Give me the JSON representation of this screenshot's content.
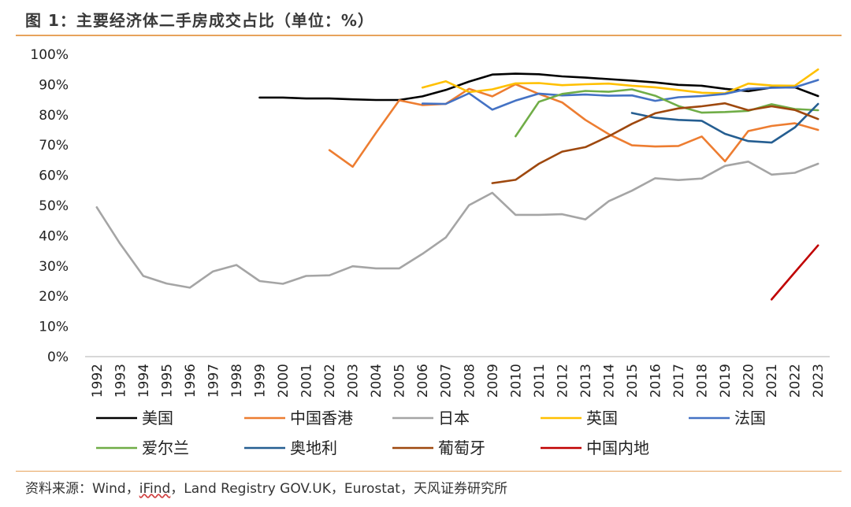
{
  "header": {
    "title": "图 1：主要经济体二手房成交占比（单位：%）"
  },
  "footer": {
    "source_prefix": "资料来源：Wind，",
    "source_ifind": "iFind",
    "source_suffix": "，Land Registry GOV.UK，Eurostat，天风证券研究所"
  },
  "colors": {
    "accent_rule": "#e7a35c"
  },
  "chart_data": {
    "type": "line",
    "title": "主要经济体二手房成交占比（单位：%）",
    "xlabel": "",
    "ylabel": "",
    "ylim": [
      0,
      100
    ],
    "y_ticks": [
      0,
      10,
      20,
      30,
      40,
      50,
      60,
      70,
      80,
      90,
      100
    ],
    "y_tick_labels": [
      "0%",
      "10%",
      "20%",
      "30%",
      "40%",
      "50%",
      "60%",
      "70%",
      "80%",
      "90%",
      "100%"
    ],
    "x": [
      1992,
      1993,
      1994,
      1995,
      1996,
      1997,
      1998,
      1999,
      2000,
      2001,
      2002,
      2003,
      2004,
      2005,
      2006,
      2007,
      2008,
      2009,
      2010,
      2011,
      2012,
      2013,
      2014,
      2015,
      2016,
      2017,
      2018,
      2019,
      2020,
      2021,
      2022,
      2023
    ],
    "x_labels": [
      "1992",
      "1993",
      "1994",
      "1995",
      "1996",
      "1997",
      "1998",
      "1999",
      "2000",
      "2001",
      "2002",
      "2003",
      "2004",
      "2005",
      "2006",
      "2007",
      "2008",
      "2009",
      "2010",
      "2011",
      "2012",
      "2013",
      "2014",
      "2015",
      "2016",
      "2017",
      "2018",
      "2019",
      "2020",
      "2021",
      "2022",
      "2023"
    ],
    "series": [
      {
        "name": "美国",
        "color": "#000000",
        "values": [
          null,
          null,
          null,
          null,
          null,
          null,
          null,
          85.7,
          85.7,
          85.4,
          85.4,
          85.1,
          84.9,
          84.9,
          86.1,
          88.2,
          91.0,
          93.3,
          93.6,
          93.4,
          92.7,
          92.3,
          91.8,
          91.3,
          90.7,
          89.9,
          89.6,
          88.6,
          87.8,
          89.0,
          89.1,
          86.2
        ]
      },
      {
        "name": "中国香港",
        "color": "#ed7d31",
        "values": [
          null,
          null,
          null,
          null,
          null,
          null,
          null,
          null,
          null,
          null,
          68.3,
          62.8,
          74.0,
          84.8,
          83.2,
          83.6,
          88.6,
          86.1,
          90.1,
          86.9,
          84.1,
          78.3,
          73.6,
          69.9,
          69.5,
          69.7,
          72.8,
          64.6,
          74.6,
          76.3,
          77.2,
          75.0
        ]
      },
      {
        "name": "日本",
        "color": "#a5a5a5",
        "values": [
          49.4,
          37.4,
          26.7,
          24.2,
          22.8,
          28.2,
          30.3,
          25.0,
          24.1,
          26.7,
          26.9,
          29.9,
          29.2,
          29.2,
          34.0,
          39.4,
          50.1,
          54.2,
          46.9,
          46.9,
          47.1,
          45.4,
          51.4,
          54.9,
          59.0,
          58.4,
          58.9,
          63.1,
          64.5,
          60.2,
          60.8,
          63.8
        ]
      },
      {
        "name": "英国",
        "color": "#ffc000",
        "values": [
          null,
          null,
          null,
          null,
          null,
          null,
          null,
          null,
          null,
          null,
          null,
          null,
          null,
          null,
          89.0,
          91.1,
          87.5,
          88.4,
          90.4,
          90.5,
          89.8,
          90.1,
          90.3,
          89.6,
          89.1,
          88.2,
          87.3,
          87.1,
          90.3,
          89.7,
          89.6,
          95.0
        ]
      },
      {
        "name": "法国",
        "color": "#4472c4",
        "values": [
          null,
          null,
          null,
          null,
          null,
          null,
          null,
          null,
          null,
          null,
          null,
          null,
          null,
          null,
          83.7,
          83.6,
          87.1,
          81.7,
          84.7,
          87.0,
          86.4,
          86.7,
          86.3,
          86.4,
          84.6,
          85.8,
          86.2,
          86.9,
          88.6,
          88.9,
          89.1,
          91.5
        ]
      },
      {
        "name": "爱尔兰",
        "color": "#70ad47",
        "values": [
          null,
          null,
          null,
          null,
          null,
          null,
          null,
          null,
          null,
          null,
          null,
          null,
          null,
          null,
          null,
          null,
          null,
          null,
          72.9,
          84.3,
          86.9,
          87.9,
          87.6,
          88.4,
          86.3,
          82.9,
          80.7,
          80.9,
          81.3,
          83.5,
          81.9,
          81.5
        ]
      },
      {
        "name": "奥地利",
        "color": "#255e91",
        "values": [
          null,
          null,
          null,
          null,
          null,
          null,
          null,
          null,
          null,
          null,
          null,
          null,
          null,
          null,
          null,
          null,
          null,
          null,
          null,
          null,
          null,
          null,
          null,
          80.6,
          79.0,
          78.3,
          78.0,
          73.7,
          71.3,
          70.8,
          75.8,
          83.6
        ]
      },
      {
        "name": "葡萄牙",
        "color": "#9e480e",
        "values": [
          null,
          null,
          null,
          null,
          null,
          null,
          null,
          null,
          null,
          null,
          null,
          null,
          null,
          null,
          null,
          null,
          null,
          57.4,
          58.5,
          63.8,
          67.8,
          69.3,
          72.9,
          77.0,
          80.5,
          82.1,
          82.8,
          83.8,
          81.5,
          82.8,
          81.6,
          78.6
        ]
      },
      {
        "name": "中国内地",
        "color": "#c00000",
        "values": [
          null,
          null,
          null,
          null,
          null,
          null,
          null,
          null,
          null,
          null,
          null,
          null,
          null,
          null,
          null,
          null,
          null,
          null,
          null,
          null,
          null,
          null,
          null,
          null,
          null,
          null,
          null,
          null,
          null,
          18.9,
          27.9,
          36.8
        ]
      }
    ],
    "legend_position": "bottom",
    "grid": false
  }
}
